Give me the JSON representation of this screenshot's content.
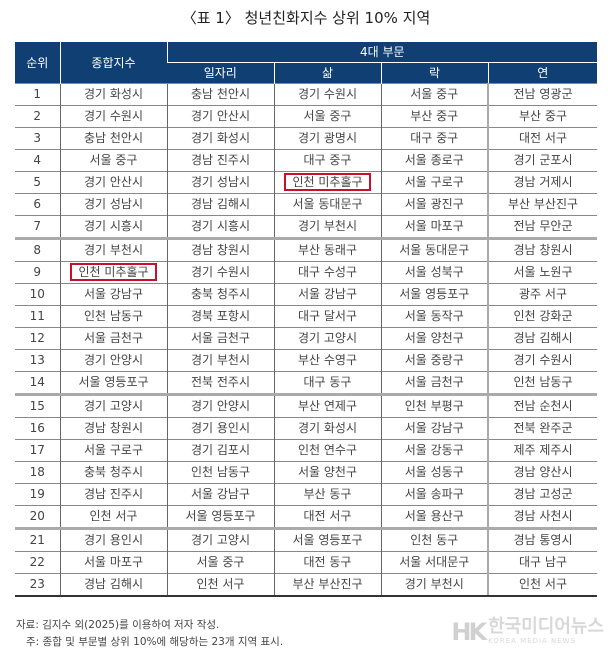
{
  "title": "〈표 1〉 청년친화지수 상위 10% 지역",
  "header": {
    "rank": "순위",
    "composite": "종합지수",
    "group": "4대 부문",
    "sub": [
      "일자리",
      "삶",
      "락",
      "연"
    ]
  },
  "rows": [
    [
      "1",
      "경기 화성시",
      "충남 천안시",
      "경기 수원시",
      "서울 중구",
      "전남 영광군"
    ],
    [
      "2",
      "경기 수원시",
      "경기 안산시",
      "서울 중구",
      "부산 중구",
      "부산 중구"
    ],
    [
      "3",
      "충남 천안시",
      "경기 화성시",
      "경기 광명시",
      "대구 중구",
      "대전 서구"
    ],
    [
      "4",
      "서울 중구",
      "경남 진주시",
      "대구 중구",
      "서울 종로구",
      "경기 군포시"
    ],
    [
      "5",
      "경기 안산시",
      "경기 성남시",
      "인천 미추홀구",
      "서울 구로구",
      "경남 거제시"
    ],
    [
      "6",
      "경기 성남시",
      "경남 김해시",
      "서울 동대문구",
      "서울 광진구",
      "부산 부산진구"
    ],
    [
      "7",
      "경기 시흥시",
      "경기 시흥시",
      "경기 부천시",
      "서울 마포구",
      "전남 무안군"
    ],
    [
      "8",
      "경기 부천시",
      "경남 창원시",
      "부산 동래구",
      "서울 동대문구",
      "경남 창원시"
    ],
    [
      "9",
      "인천 미추홀구",
      "경기 수원시",
      "대구 수성구",
      "서울 성북구",
      "서울 노원구"
    ],
    [
      "10",
      "서울 강남구",
      "충북 청주시",
      "서울 강남구",
      "서울 영등포구",
      "광주 서구"
    ],
    [
      "11",
      "인천 남동구",
      "경북 포항시",
      "대구 달서구",
      "서울 동작구",
      "인천 강화군"
    ],
    [
      "12",
      "서울 금천구",
      "서울 금천구",
      "경기 고양시",
      "서울 양천구",
      "경남 김해시"
    ],
    [
      "13",
      "경기 안양시",
      "경기 부천시",
      "부산 수영구",
      "서울 중랑구",
      "경기 수원시"
    ],
    [
      "14",
      "서울 영등포구",
      "전북 전주시",
      "대구 동구",
      "서울 금천구",
      "인천 남동구"
    ],
    [
      "15",
      "경기 고양시",
      "경기 안양시",
      "부산 연제구",
      "인천 부평구",
      "전남 순천시"
    ],
    [
      "16",
      "경남 창원시",
      "경기 용인시",
      "경기 화성시",
      "서울 강남구",
      "전북 완주군"
    ],
    [
      "17",
      "서울 구로구",
      "경기 김포시",
      "인천 연수구",
      "서울 강동구",
      "제주 제주시"
    ],
    [
      "18",
      "충북 청주시",
      "인천 남동구",
      "서울 양천구",
      "서울 성동구",
      "경남 양산시"
    ],
    [
      "19",
      "경남 진주시",
      "서울 강남구",
      "부산 동구",
      "서울 송파구",
      "경남 고성군"
    ],
    [
      "20",
      "인천 서구",
      "서울 영등포구",
      "대전 서구",
      "서울 용산구",
      "경남 사천시"
    ],
    [
      "21",
      "경기 용인시",
      "경기 고양시",
      "서울 영등포구",
      "인천 동구",
      "경남 통영시"
    ],
    [
      "22",
      "서울 마포구",
      "서울 중구",
      "대전 동구",
      "서울 서대문구",
      "대구 남구"
    ],
    [
      "23",
      "경남 김해시",
      "인천 서구",
      "부산 부산진구",
      "경기 부천시",
      "인천 서구"
    ]
  ],
  "highlighted": [
    [
      5,
      3
    ],
    [
      9,
      1
    ]
  ],
  "highlight_color": "#c8102e",
  "header_color": "#0f3f73",
  "notes": {
    "source": "자료: 김지수 외(2025)를 이용하여 저자 작성.",
    "note": "주: 종합 및 부문별 상위 10%에 해당하는 23개 지역 표시."
  },
  "watermark": {
    "logo": "HK",
    "name": "한국미디어뉴스",
    "name_en": "KOREA MEDIA NEWS"
  }
}
